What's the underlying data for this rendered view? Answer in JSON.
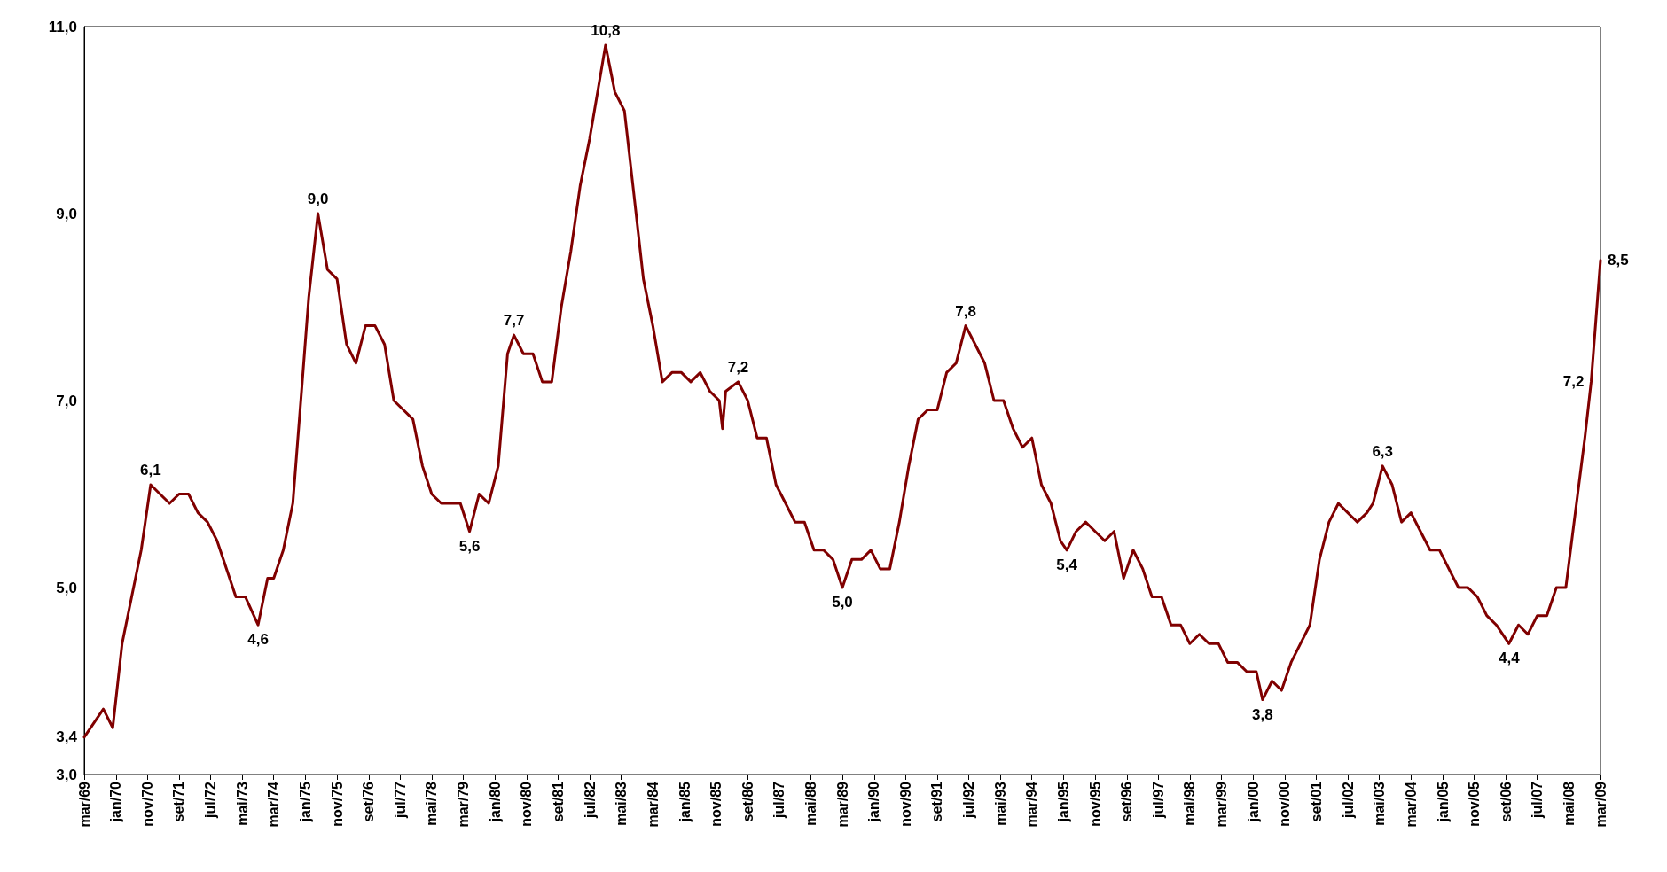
{
  "chart_data": {
    "type": "line",
    "color": "#800000",
    "marker": "none",
    "grid": false,
    "x": [
      "1969-03",
      "1969-09",
      "1969-12",
      "1970-03",
      "1970-06",
      "1970-09",
      "1970-12",
      "1971-03",
      "1971-06",
      "1971-09",
      "1971-12",
      "1972-03",
      "1972-06",
      "1972-09",
      "1972-12",
      "1973-03",
      "1973-06",
      "1973-10",
      "1974-01",
      "1974-03",
      "1974-06",
      "1974-09",
      "1974-12",
      "1975-02",
      "1975-05",
      "1975-08",
      "1975-11",
      "1976-02",
      "1976-05",
      "1976-08",
      "1976-11",
      "1977-02",
      "1977-05",
      "1977-08",
      "1977-11",
      "1978-02",
      "1978-05",
      "1978-08",
      "1978-11",
      "1979-02",
      "1979-05",
      "1979-08",
      "1979-11",
      "1980-02",
      "1980-05",
      "1980-07",
      "1980-10",
      "1981-01",
      "1981-04",
      "1981-07",
      "1981-10",
      "1982-01",
      "1982-04",
      "1982-07",
      "1982-10",
      "1982-12",
      "1983-03",
      "1983-06",
      "1983-09",
      "1983-12",
      "1984-03",
      "1984-06",
      "1984-09",
      "1984-12",
      "1985-03",
      "1985-06",
      "1985-09",
      "1985-12",
      "1986-01",
      "1986-02",
      "1986-06",
      "1986-09",
      "1986-12",
      "1987-03",
      "1987-06",
      "1987-09",
      "1987-12",
      "1988-03",
      "1988-06",
      "1988-09",
      "1988-12",
      "1989-03",
      "1989-06",
      "1989-09",
      "1989-12",
      "1990-03",
      "1990-06",
      "1990-09",
      "1990-12",
      "1991-03",
      "1991-06",
      "1991-09",
      "1991-12",
      "1992-03",
      "1992-06",
      "1992-09",
      "1992-12",
      "1993-03",
      "1993-06",
      "1993-09",
      "1993-12",
      "1994-03",
      "1994-06",
      "1994-09",
      "1994-12",
      "1995-02",
      "1995-05",
      "1995-08",
      "1995-11",
      "1996-02",
      "1996-05",
      "1996-08",
      "1996-11",
      "1997-02",
      "1997-05",
      "1997-08",
      "1997-11",
      "1998-02",
      "1998-05",
      "1998-08",
      "1998-11",
      "1999-02",
      "1999-05",
      "1999-08",
      "1999-11",
      "2000-02",
      "2000-04",
      "2000-07",
      "2000-10",
      "2001-01",
      "2001-04",
      "2001-07",
      "2001-10",
      "2002-01",
      "2002-04",
      "2002-07",
      "2002-10",
      "2003-01",
      "2003-03",
      "2003-06",
      "2003-09",
      "2003-12",
      "2004-03",
      "2004-06",
      "2004-09",
      "2004-12",
      "2005-03",
      "2005-06",
      "2005-09",
      "2005-12",
      "2006-03",
      "2006-06",
      "2006-10",
      "2007-01",
      "2007-04",
      "2007-07",
      "2007-10",
      "2008-01",
      "2008-04",
      "2008-07",
      "2008-10",
      "2008-12",
      "2009-02",
      "2009-03"
    ],
    "values": [
      3.4,
      3.7,
      3.5,
      4.4,
      4.9,
      5.4,
      6.1,
      6.0,
      5.9,
      6.0,
      6.0,
      5.8,
      5.7,
      5.5,
      5.2,
      4.9,
      4.9,
      4.6,
      5.1,
      5.1,
      5.4,
      5.9,
      7.2,
      8.1,
      9.0,
      8.4,
      8.3,
      7.6,
      7.4,
      7.8,
      7.8,
      7.6,
      7.0,
      6.9,
      6.8,
      6.3,
      6.0,
      5.9,
      5.9,
      5.9,
      5.6,
      6.0,
      5.9,
      6.3,
      7.5,
      7.7,
      7.5,
      7.5,
      7.2,
      7.2,
      8.0,
      8.6,
      9.3,
      9.8,
      10.4,
      10.8,
      10.3,
      10.1,
      9.2,
      8.3,
      7.8,
      7.2,
      7.3,
      7.3,
      7.2,
      7.3,
      7.1,
      7.0,
      6.7,
      7.1,
      7.2,
      7.0,
      6.6,
      6.6,
      6.1,
      5.9,
      5.7,
      5.7,
      5.4,
      5.4,
      5.3,
      5.0,
      5.3,
      5.3,
      5.4,
      5.2,
      5.2,
      5.7,
      6.3,
      6.8,
      6.9,
      6.9,
      7.3,
      7.4,
      7.8,
      7.6,
      7.4,
      7.0,
      7.0,
      6.7,
      6.5,
      6.6,
      6.1,
      5.9,
      5.5,
      5.4,
      5.6,
      5.7,
      5.6,
      5.5,
      5.6,
      5.1,
      5.4,
      5.2,
      4.9,
      4.9,
      4.6,
      4.6,
      4.4,
      4.5,
      4.4,
      4.4,
      4.2,
      4.2,
      4.1,
      4.1,
      3.8,
      4.0,
      3.9,
      4.2,
      4.4,
      4.6,
      5.3,
      5.7,
      5.9,
      5.8,
      5.7,
      5.8,
      5.9,
      6.3,
      6.1,
      5.7,
      5.8,
      5.6,
      5.4,
      5.4,
      5.2,
      5.0,
      5.0,
      4.9,
      4.7,
      4.6,
      4.4,
      4.6,
      4.5,
      4.7,
      4.7,
      5.0,
      5.0,
      5.8,
      6.6,
      7.2,
      8.1,
      8.5
    ],
    "value_labels": [
      "3,4",
      null,
      null,
      null,
      null,
      null,
      "6,1",
      null,
      null,
      null,
      null,
      null,
      null,
      null,
      null,
      null,
      null,
      "4,6",
      null,
      null,
      null,
      null,
      null,
      null,
      "9,0",
      null,
      null,
      null,
      null,
      null,
      null,
      null,
      null,
      null,
      null,
      null,
      null,
      null,
      null,
      null,
      "5,6",
      null,
      null,
      null,
      null,
      "7,7",
      null,
      null,
      null,
      null,
      null,
      null,
      null,
      null,
      null,
      "10,8",
      null,
      null,
      null,
      null,
      null,
      null,
      null,
      null,
      null,
      null,
      null,
      null,
      null,
      null,
      "7,2",
      null,
      null,
      null,
      null,
      null,
      null,
      null,
      null,
      null,
      null,
      "5,0",
      null,
      null,
      null,
      null,
      null,
      null,
      null,
      null,
      null,
      null,
      null,
      null,
      "7,8",
      null,
      null,
      null,
      null,
      null,
      null,
      null,
      null,
      null,
      null,
      "5,4",
      null,
      null,
      null,
      null,
      null,
      null,
      null,
      null,
      null,
      null,
      null,
      null,
      null,
      null,
      null,
      null,
      null,
      null,
      null,
      null,
      "3,8",
      null,
      null,
      null,
      null,
      null,
      null,
      null,
      null,
      null,
      null,
      null,
      null,
      "6,3",
      null,
      null,
      null,
      null,
      null,
      null,
      null,
      null,
      null,
      null,
      null,
      null,
      "4,4",
      null,
      null,
      null,
      null,
      null,
      null,
      null,
      null,
      "7,2",
      null,
      "8,5"
    ],
    "ylim": [
      3,
      11
    ],
    "yticks": [
      {
        "value": 3,
        "label": "3,0"
      },
      {
        "value": 5,
        "label": "5,0"
      },
      {
        "value": 7,
        "label": "7,0"
      },
      {
        "value": 9,
        "label": "9,0"
      },
      {
        "value": 11,
        "label": "11,0"
      }
    ],
    "xlim": [
      "1969-03",
      "2009-03"
    ],
    "xticks": [
      {
        "value": "1969-03",
        "label": "mar/69"
      },
      {
        "value": "1970-01",
        "label": "jan/70"
      },
      {
        "value": "1970-11",
        "label": "nov/70"
      },
      {
        "value": "1971-09",
        "label": "set/71"
      },
      {
        "value": "1972-07",
        "label": "jul/72"
      },
      {
        "value": "1973-05",
        "label": "mai/73"
      },
      {
        "value": "1974-03",
        "label": "mar/74"
      },
      {
        "value": "1975-01",
        "label": "jan/75"
      },
      {
        "value": "1975-11",
        "label": "nov/75"
      },
      {
        "value": "1976-09",
        "label": "set/76"
      },
      {
        "value": "1977-07",
        "label": "jul/77"
      },
      {
        "value": "1978-05",
        "label": "mai/78"
      },
      {
        "value": "1979-03",
        "label": "mar/79"
      },
      {
        "value": "1980-01",
        "label": "jan/80"
      },
      {
        "value": "1980-11",
        "label": "nov/80"
      },
      {
        "value": "1981-09",
        "label": "set/81"
      },
      {
        "value": "1982-07",
        "label": "jul/82"
      },
      {
        "value": "1983-05",
        "label": "mai/83"
      },
      {
        "value": "1984-03",
        "label": "mar/84"
      },
      {
        "value": "1985-01",
        "label": "jan/85"
      },
      {
        "value": "1985-11",
        "label": "nov/85"
      },
      {
        "value": "1986-09",
        "label": "set/86"
      },
      {
        "value": "1987-07",
        "label": "jul/87"
      },
      {
        "value": "1988-05",
        "label": "mai/88"
      },
      {
        "value": "1989-03",
        "label": "mar/89"
      },
      {
        "value": "1990-01",
        "label": "jan/90"
      },
      {
        "value": "1990-11",
        "label": "nov/90"
      },
      {
        "value": "1991-09",
        "label": "set/91"
      },
      {
        "value": "1992-07",
        "label": "jul/92"
      },
      {
        "value": "1993-05",
        "label": "mai/93"
      },
      {
        "value": "1994-03",
        "label": "mar/94"
      },
      {
        "value": "1995-01",
        "label": "jan/95"
      },
      {
        "value": "1995-11",
        "label": "nov/95"
      },
      {
        "value": "1996-09",
        "label": "set/96"
      },
      {
        "value": "1997-07",
        "label": "jul/97"
      },
      {
        "value": "1998-05",
        "label": "mai/98"
      },
      {
        "value": "1999-03",
        "label": "mar/99"
      },
      {
        "value": "2000-01",
        "label": "jan/00"
      },
      {
        "value": "2000-11",
        "label": "nov/00"
      },
      {
        "value": "2001-09",
        "label": "set/01"
      },
      {
        "value": "2002-07",
        "label": "jul/02"
      },
      {
        "value": "2003-05",
        "label": "mai/03"
      },
      {
        "value": "2004-03",
        "label": "mar/04"
      },
      {
        "value": "2005-01",
        "label": "jan/05"
      },
      {
        "value": "2005-11",
        "label": "nov/05"
      },
      {
        "value": "2006-09",
        "label": "set/06"
      },
      {
        "value": "2007-07",
        "label": "jul/07"
      },
      {
        "value": "2008-05",
        "label": "mai/08"
      },
      {
        "value": "2009-03",
        "label": "mar/09"
      }
    ]
  }
}
